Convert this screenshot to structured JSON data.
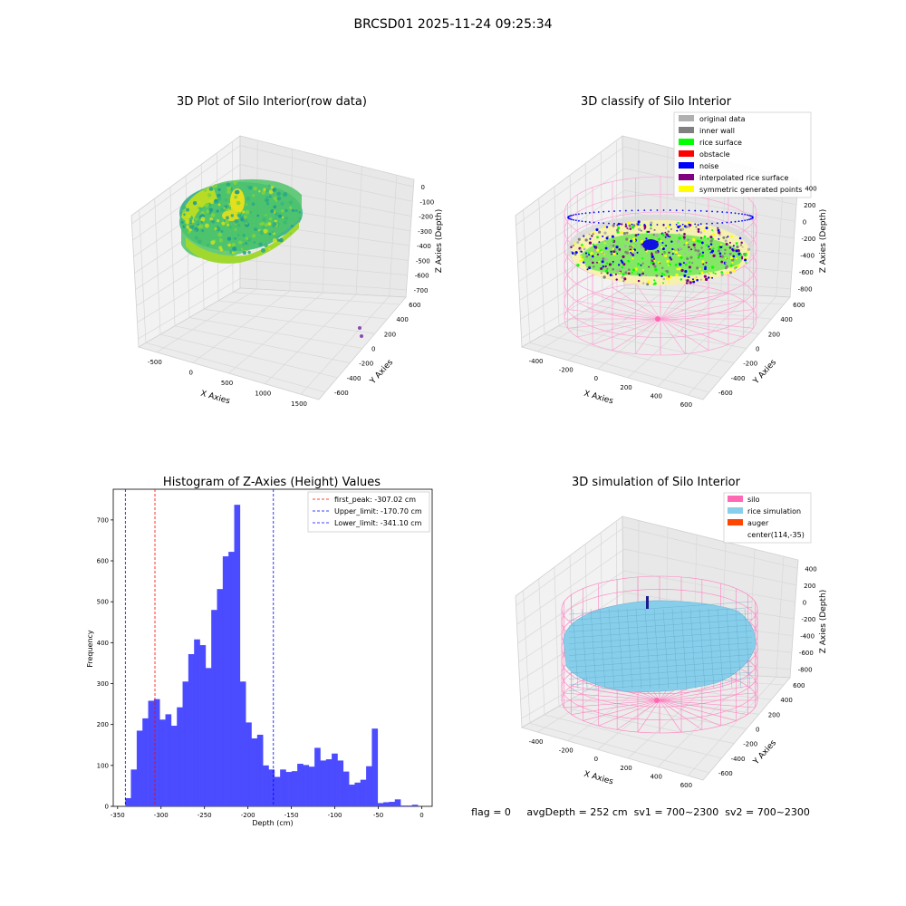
{
  "figure": {
    "suptitle": "BRCSD01 2025-11-24 09:25:34"
  },
  "panels": {
    "raw": {
      "title": "3D Plot of Silo Interior(row data)",
      "xlabel": "X Axies",
      "ylabel": "Y Axies",
      "zlabel": "Z Axies (Depth)",
      "xticks": [
        "-500",
        "0",
        "500",
        "1000",
        "1500"
      ],
      "yticks": [
        "600",
        "400",
        "200",
        "0",
        "-200",
        "-400",
        "-600"
      ],
      "zticks": [
        "0",
        "-100",
        "-200",
        "-300",
        "-400",
        "-500",
        "-600",
        "-700"
      ]
    },
    "classify": {
      "title": "3D classify of Silo Interior",
      "xlabel": "X Axies",
      "ylabel": "Y Axies",
      "zlabel": "Z Axies (Depth)",
      "xticks": [
        "-400",
        "-200",
        "0",
        "200",
        "400",
        "600"
      ],
      "yticks": [
        "600",
        "400",
        "200",
        "0",
        "-200",
        "-400",
        "-600"
      ],
      "zticks": [
        "400",
        "200",
        "0",
        "-200",
        "-400",
        "-600",
        "-800"
      ],
      "legend": [
        {
          "label": "original data",
          "color": "#b0b0b0"
        },
        {
          "label": "inner wall",
          "color": "#808080"
        },
        {
          "label": "rice surface",
          "color": "#00ff00"
        },
        {
          "label": "obstacle",
          "color": "#ff0000"
        },
        {
          "label": "noise",
          "color": "#0000ff"
        },
        {
          "label": "interpolated rice surface",
          "color": "#800080"
        },
        {
          "label": "symmetric generated points",
          "color": "#ffff00"
        }
      ]
    },
    "simulation": {
      "title": "3D simulation of Silo Interior",
      "xlabel": "X Axies",
      "ylabel": "Y Axies",
      "zlabel": "Z Axies (Depth)",
      "xticks": [
        "-400",
        "-200",
        "0",
        "200",
        "400",
        "600"
      ],
      "yticks": [
        "600",
        "400",
        "200",
        "0",
        "-200",
        "-400",
        "-600"
      ],
      "zticks": [
        "400",
        "200",
        "0",
        "-200",
        "-400",
        "-600",
        "-800"
      ],
      "legend": [
        {
          "label": "silo",
          "color": "#ff69b4"
        },
        {
          "label": "rice simulation",
          "color": "#87ceeb"
        },
        {
          "label": "auger",
          "color": "#ff4500"
        },
        {
          "label": "center(114,-35)",
          "color": ""
        }
      ]
    },
    "status": {
      "text": "flag = 0     avgDepth = 252 cm  sv1 = 700~2300  sv2 = 700~2300"
    }
  },
  "chart_data": {
    "type": "bar",
    "title": "Histogram of Z-Axies (Height) Values",
    "xlabel": "Depth (cm)",
    "ylabel": "Frequency",
    "xlim": [
      -355,
      12
    ],
    "ylim": [
      0,
      775
    ],
    "xticks": [
      -350,
      -300,
      -250,
      -200,
      -150,
      -100,
      -50,
      0
    ],
    "yticks": [
      0,
      100,
      200,
      300,
      400,
      500,
      600,
      700
    ],
    "bar_color": "#4b4bff",
    "bin_edges": [
      -341.1,
      -338.0,
      -334.7,
      -331.3,
      -328.0,
      -324.7,
      -321.4,
      -318.1,
      -314.8,
      -311.5,
      -308.2,
      -304.9,
      -301.6,
      -298.3,
      -295.0,
      -291.7,
      -288.4,
      -285.1,
      -281.8,
      -278.5,
      -275.2,
      -271.9,
      -268.6,
      -265.3,
      -262.0,
      -258.7,
      -255.4,
      -252.1,
      -248.8,
      -245.5,
      -242.2,
      -238.9,
      -235.6,
      -232.3,
      -229.0,
      -225.7,
      -222.4,
      -219.1,
      -215.8,
      -212.5,
      -209.2,
      -205.9,
      -202.6,
      -199.3,
      -196.0,
      -192.7,
      -189.4,
      -186.1,
      -182.8,
      -179.5,
      -176.2,
      -172.9,
      -169.6,
      -166.3,
      -163.0,
      -159.7,
      -156.4,
      -153.1,
      -149.8,
      -146.5,
      -143.2,
      -139.9,
      -136.6,
      -133.3,
      -130.0,
      -126.7,
      -123.4,
      -120.1,
      -116.8,
      -113.5,
      -110.2,
      -106.9,
      -103.6,
      -100.3,
      -97.0,
      -93.7,
      -90.4,
      -87.1,
      -83.8,
      -80.5,
      -77.2,
      -73.9,
      -70.6,
      -67.3,
      -64.0,
      -60.7,
      -57.4,
      -54.1,
      -50.8,
      -47.5,
      -44.2,
      -40.9,
      -37.6,
      -34.3,
      -31.0,
      -27.7,
      -24.4,
      -21.1,
      -17.8,
      -14.5,
      -11.2,
      -7.9,
      -4.6,
      -1.3,
      2.0
    ],
    "values": [
      20,
      20,
      90,
      90,
      185,
      185,
      215,
      215,
      258,
      258,
      262,
      262,
      212,
      212,
      225,
      225,
      197,
      197,
      242,
      242,
      305,
      305,
      372,
      372,
      408,
      408,
      394,
      394,
      338,
      338,
      480,
      480,
      531,
      531,
      611,
      611,
      622,
      622,
      737,
      737,
      305,
      305,
      205,
      205,
      166,
      166,
      175,
      175,
      100,
      100,
      90,
      90,
      72,
      72,
      90,
      90,
      84,
      84,
      86,
      86,
      104,
      104,
      101,
      101,
      97,
      97,
      143,
      143,
      112,
      112,
      115,
      115,
      129,
      129,
      112,
      112,
      85,
      85,
      53,
      53,
      58,
      58,
      65,
      65,
      98,
      98,
      190,
      190,
      8,
      8,
      10,
      10,
      11,
      11,
      17,
      17,
      2,
      2,
      2,
      2,
      4,
      4,
      0,
      0
    ],
    "lines": [
      {
        "label": "first_peak: -307.02 cm",
        "x": -307.02,
        "color": "#ff0000"
      },
      {
        "label": "Upper_limit: -170.70 cm",
        "x": -170.7,
        "color": "#0000ff"
      },
      {
        "label": "Lower_limit: -341.10 cm",
        "x": -341.1,
        "color": "#0000ff"
      }
    ]
  }
}
